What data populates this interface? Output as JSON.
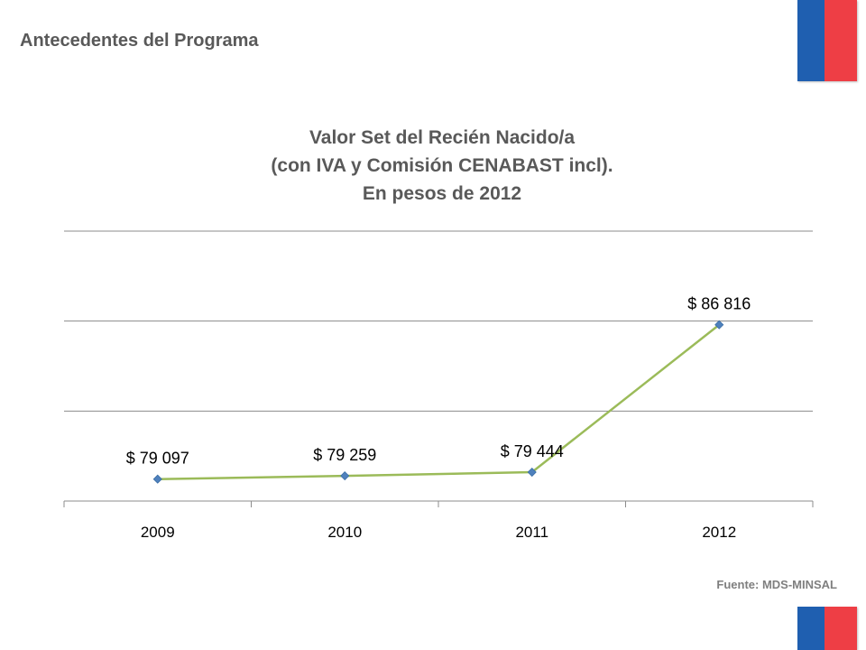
{
  "header": {
    "title": "Antecedentes del Programa"
  },
  "flag_colors": {
    "blue": "#1f5fb0",
    "red": "#ee3e45"
  },
  "chart_data": {
    "type": "line",
    "title_lines": [
      "Valor Set del Recién Nacido/a",
      "(con IVA y Comisión CENABAST incl).",
      "En pesos de 2012"
    ],
    "categories": [
      "2009",
      "2010",
      "2011",
      "2012"
    ],
    "series": [
      {
        "values": [
          79097,
          79259,
          79444,
          86816
        ],
        "labels": [
          "$ 79 097",
          "$ 79 259",
          "$ 79 444",
          "$ 86 816"
        ],
        "line_color": "#9bbb59",
        "marker_color": "#4f81bd"
      }
    ],
    "ylim": [
      78000,
      91500
    ],
    "gridlines": true,
    "y_axis_labels": false,
    "legend": "none",
    "xlabel": "",
    "ylabel": ""
  },
  "footer": {
    "source": "Fuente: MDS-MINSAL"
  }
}
